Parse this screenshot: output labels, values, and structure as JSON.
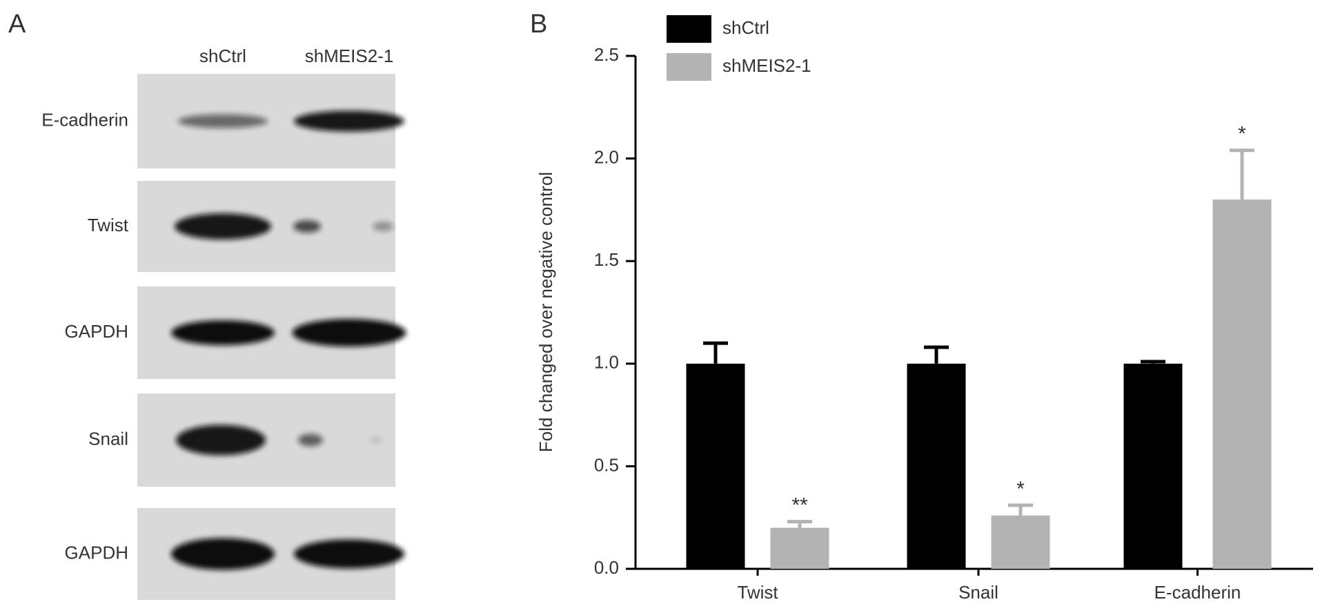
{
  "panels": [
    "A",
    "B"
  ],
  "blot": {
    "columns": [
      "shCtrl",
      "shMEIS2-1"
    ],
    "rows": [
      "E-cadherin",
      "Twist",
      "GAPDH",
      "Snail",
      "GAPDH"
    ]
  },
  "chart_data": {
    "type": "bar",
    "y_label": "Fold changed over negative control",
    "categories": [
      "Twist",
      "Snail",
      "E-cadherin"
    ],
    "series": [
      {
        "name": "shCtrl",
        "color": "#000000",
        "values": [
          1.0,
          1.0,
          1.0
        ],
        "errors": [
          0.1,
          0.08,
          0.01
        ]
      },
      {
        "name": "shMEIS2-1",
        "color": "#b3b3b3",
        "values": [
          0.2,
          0.26,
          1.8
        ],
        "errors": [
          0.03,
          0.05,
          0.24
        ],
        "significance": [
          "**",
          "*",
          "*"
        ]
      }
    ],
    "ylim": [
      0,
      2.5
    ],
    "yticks": [
      {
        "value": 0,
        "label": "0.0"
      },
      {
        "value": 0.5,
        "label": "0.5"
      },
      {
        "value": 1,
        "label": "1.0"
      },
      {
        "value": 1.5,
        "label": "1.5"
      },
      {
        "value": 2,
        "label": "2.0"
      },
      {
        "value": 2.5,
        "label": "2.5"
      }
    ]
  }
}
